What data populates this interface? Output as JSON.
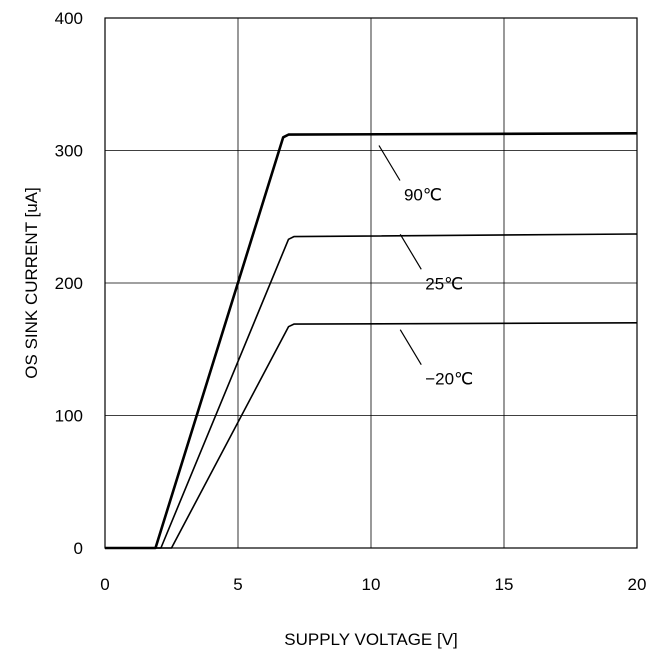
{
  "chart_data": {
    "type": "line",
    "xlabel": "SUPPLY VOLTAGE [V]",
    "ylabel": "OS SINK CURRENT [uA]",
    "xlim": [
      0,
      20
    ],
    "ylim": [
      0,
      400
    ],
    "xticks": [
      0,
      5,
      10,
      15,
      20
    ],
    "yticks": [
      0,
      100,
      200,
      300,
      400
    ],
    "xtick_labels": [
      "0",
      "5",
      "10",
      "15",
      "20"
    ],
    "ytick_labels": [
      "0",
      "100",
      "200",
      "300",
      "400"
    ],
    "grid": true,
    "legend": "none",
    "series": [
      {
        "name": "90℃",
        "emphasis": "bold",
        "x": [
          0,
          1.9,
          6.7,
          6.9,
          20
        ],
        "y": [
          0,
          0,
          310,
          312,
          313
        ],
        "label_point": [
          10.3,
          300
        ]
      },
      {
        "name": "25℃",
        "emphasis": "normal",
        "x": [
          0,
          2.1,
          6.9,
          7.1,
          20
        ],
        "y": [
          0,
          0,
          233,
          235,
          237
        ],
        "label_point": [
          11.1,
          233
        ]
      },
      {
        "name": "−20℃",
        "emphasis": "normal",
        "x": [
          0,
          2.5,
          6.9,
          7.1,
          20
        ],
        "y": [
          0,
          0,
          167,
          169,
          170
        ],
        "label_point": [
          11.1,
          161
        ]
      }
    ]
  }
}
